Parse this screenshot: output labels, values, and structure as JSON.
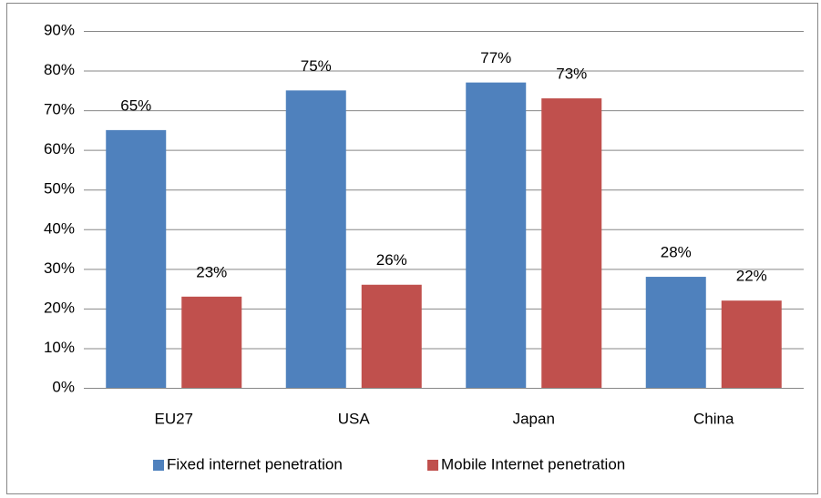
{
  "chart_data": {
    "type": "bar",
    "categories": [
      "EU27",
      "USA",
      "Japan",
      "China"
    ],
    "series": [
      {
        "name": "Fixed internet penetration",
        "color": "#4f81bd",
        "values": [
          65,
          75,
          77,
          28
        ],
        "value_labels": [
          "65%",
          "75%",
          "77%",
          "28%"
        ]
      },
      {
        "name": "Mobile Internet penetration",
        "color": "#c0504d",
        "values": [
          23,
          26,
          73,
          22
        ],
        "value_labels": [
          "23%",
          "26%",
          "73%",
          "22%"
        ]
      }
    ],
    "ylim": [
      0,
      90
    ],
    "yticks": [
      {
        "value": 0,
        "label": "0%"
      },
      {
        "value": 10,
        "label": "10%"
      },
      {
        "value": 20,
        "label": "20%"
      },
      {
        "value": 30,
        "label": "30%"
      },
      {
        "value": 40,
        "label": "40%"
      },
      {
        "value": 50,
        "label": "50%"
      },
      {
        "value": 60,
        "label": "60%"
      },
      {
        "value": 70,
        "label": "70%"
      },
      {
        "value": 80,
        "label": "80%"
      },
      {
        "value": 90,
        "label": "90%"
      }
    ],
    "grid": true,
    "legend": "bottom"
  }
}
